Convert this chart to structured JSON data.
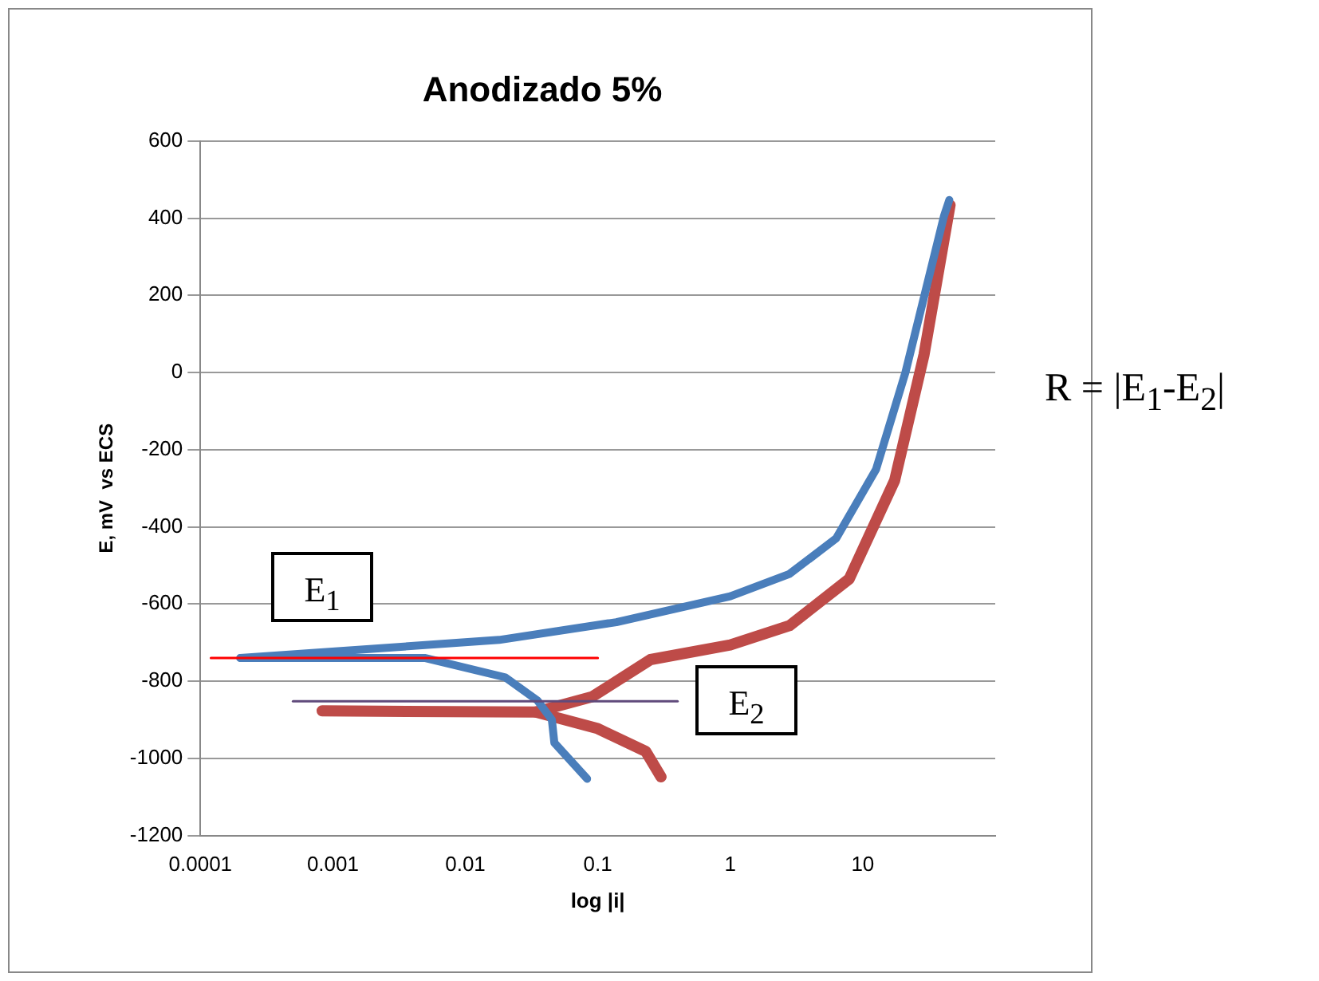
{
  "chart_data": {
    "type": "line",
    "title": "Anodizado 5%",
    "xlabel": "log |i|",
    "ylabel": "E, mV  vs ECS",
    "log": "x",
    "xlim": [
      0.0001,
      100
    ],
    "xticks": [
      0.0001,
      0.001,
      0.01,
      0.1,
      1,
      10
    ],
    "ylim": [
      -1200,
      600
    ],
    "yticks": [
      -1200,
      -1000,
      -800,
      -600,
      -400,
      -200,
      0,
      200,
      400,
      600
    ],
    "grid": "y",
    "legend": false,
    "marker": "none",
    "line_style": "solid",
    "series": [
      {
        "color": "#4a7ebb",
        "x": [
          0.083,
          0.047,
          0.045,
          0.035,
          0.02,
          0.005,
          0.0002
        ],
        "values": [
          -1053,
          -960,
          -900,
          -850,
          -790,
          -740,
          -740
        ]
      },
      {
        "color": "#4a7ebb",
        "x": [
          0.0002,
          0.018,
          0.138,
          1.0,
          2.8,
          6.3,
          12.6,
          21,
          41,
          45
        ],
        "values": [
          -740,
          -693,
          -647,
          -580,
          -522,
          -430,
          -251,
          0,
          405,
          447
        ]
      },
      {
        "color": "#be4b48",
        "x": [
          0.3,
          0.23,
          0.1,
          0.034,
          0.00083
        ],
        "values": [
          -1048,
          -982,
          -923,
          -880,
          -877
        ]
      },
      {
        "color": "#be4b48",
        "x": [
          0.034,
          0.091,
          0.25,
          1.0,
          2.8,
          7.9,
          17.4,
          29,
          45.6
        ],
        "values": [
          -880,
          -840,
          -744,
          -706,
          -656,
          -535,
          -280,
          46,
          434
        ]
      },
      {
        "type": "line",
        "color": "#ff0000",
        "x": [
          0.00012,
          0.1
        ],
        "values": [
          -740,
          -740
        ]
      },
      {
        "type": "line",
        "color": "#604a7b",
        "x": [
          0.0005,
          0.4
        ],
        "values": [
          -852,
          -852
        ]
      }
    ],
    "annotations": [
      "E$_{1}$",
      "E$_{2}$",
      "R = |E$_{1}$-E$_{2}$|"
    ]
  }
}
